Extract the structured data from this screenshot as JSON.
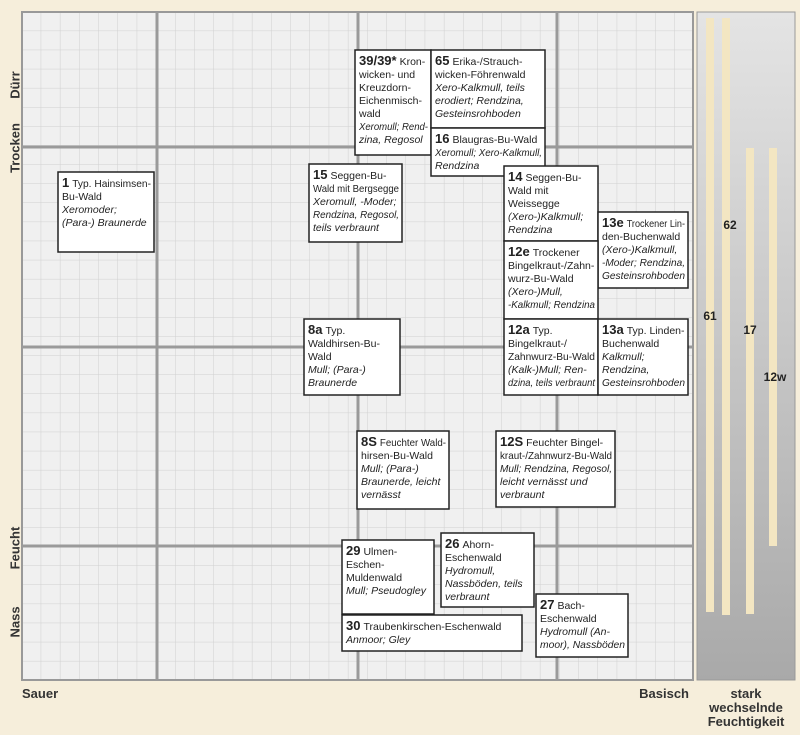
{
  "axes": {
    "y_top": "Dürr",
    "y_upper": "Trocken",
    "y_lower": "Feucht",
    "y_bottom": "Nass",
    "x_left": "Sauer",
    "x_right": "Basisch"
  },
  "side_panel": {
    "label_lines": [
      "stark",
      "wechselnde",
      "Feuchtigkeit"
    ],
    "bars": [
      "61",
      "62",
      "17",
      "12w"
    ]
  },
  "units": [
    {
      "code": "39/39*",
      "name_lines": [
        "Kron-",
        "wicken- und",
        "Kreuzdorn-",
        "Eichenmisch-",
        "wald"
      ],
      "soil_lines": [
        "Xeromull; Rend-",
        "zina, Regosol"
      ]
    },
    {
      "code": "65",
      "name_lines": [
        "Erika-/Strauch-",
        "wicken-Föhrenwald"
      ],
      "soil_lines": [
        "Xero-Kalkmull, teils",
        "erodiert; Rendzina,",
        "Gesteinsrohboden"
      ]
    },
    {
      "code": "16",
      "name_lines": [
        "Blaugras-Bu-Wald"
      ],
      "soil_lines": [
        "Xeromull; Xero-Kalkmull,",
        "Rendzina"
      ]
    },
    {
      "code": "1",
      "name_lines": [
        "Typ. Hainsimsen-",
        "Bu-Wald"
      ],
      "soil_lines": [
        "Xeromoder;",
        "(Para-) Braunerde"
      ]
    },
    {
      "code": "15",
      "name_lines": [
        "Seggen-Bu-",
        "Wald mit Bergsegge"
      ],
      "soil_lines": [
        "Xeromull, -Moder;",
        "Rendzina, Regosol,",
        "teils verbraunt"
      ]
    },
    {
      "code": "14",
      "name_lines": [
        "Seggen-Bu-",
        "Wald mit",
        "Weissegge"
      ],
      "soil_lines": [
        "(Xero-)Kalkmull;",
        "Rendzina"
      ]
    },
    {
      "code": "13e",
      "name_lines": [
        "Trockener Lin-",
        "den-Buchenwald"
      ],
      "soil_lines": [
        "(Xero-)Kalkmull,",
        "-Moder; Rendzina,",
        "Gesteinsrohboden"
      ]
    },
    {
      "code": "12e",
      "name_lines": [
        "Trockener",
        "Bingelkraut-/Zahn-",
        "wurz-Bu-Wald"
      ],
      "soil_lines": [
        "(Xero-)Mull,",
        "-Kalkmull; Rendzina"
      ]
    },
    {
      "code": "8a",
      "name_lines": [
        "Typ.",
        "Waldhirsen-Bu-",
        "Wald"
      ],
      "soil_lines": [
        "Mull; (Para-)",
        "Braunerde"
      ]
    },
    {
      "code": "12a",
      "name_lines": [
        "Typ.",
        "Bingelkraut-/",
        "Zahnwurz-Bu-Wald"
      ],
      "soil_lines": [
        "(Kalk-)Mull; Ren-",
        "dzina, teils verbraunt"
      ]
    },
    {
      "code": "13a",
      "name_lines": [
        "Typ. Linden-",
        "Buchenwald"
      ],
      "soil_lines": [
        "Kalkmull;",
        "Rendzina,",
        "Gesteinsrohboden"
      ]
    },
    {
      "code": "8S",
      "name_lines": [
        "Feuchter Wald-",
        "hirsen-Bu-Wald"
      ],
      "soil_lines": [
        "Mull; (Para-)",
        "Braunerde, leicht",
        "vernässt"
      ]
    },
    {
      "code": "12S",
      "name_lines": [
        "Feuchter Bingel-",
        "kraut-/Zahnwurz-Bu-Wald"
      ],
      "soil_lines": [
        "Mull; Rendzina, Regosol,",
        "leicht vernässt und",
        "verbraunt"
      ]
    },
    {
      "code": "29",
      "name_lines": [
        "Ulmen-",
        "Eschen-",
        "Muldenwald"
      ],
      "soil_lines": [
        "Mull; Pseudogley"
      ]
    },
    {
      "code": "26",
      "name_lines": [
        "Ahorn-",
        "Eschenwald"
      ],
      "soil_lines": [
        "Hydromull,",
        "Nassböden, teils",
        "verbraunt"
      ]
    },
    {
      "code": "30",
      "name_lines": [
        "Traubenkirschen-Eschenwald"
      ],
      "soil_lines": [
        "Anmoor; Gley"
      ]
    },
    {
      "code": "27",
      "name_lines": [
        "Bach-",
        "Eschenwald"
      ],
      "soil_lines": [
        "Hydromull (An-",
        "moor), Nassböden"
      ]
    }
  ]
}
